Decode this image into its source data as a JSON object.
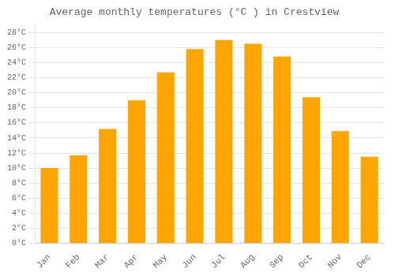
{
  "chart_data": {
    "type": "bar",
    "title": "Average monthly temperatures (°C ) in Crestview",
    "categories": [
      "Jan",
      "Feb",
      "Mar",
      "Apr",
      "May",
      "Jun",
      "Jul",
      "Aug",
      "Sep",
      "Oct",
      "Nov",
      "Dec"
    ],
    "values": [
      10.0,
      11.7,
      15.2,
      19.0,
      22.7,
      25.8,
      27.0,
      26.5,
      24.8,
      19.4,
      14.9,
      11.5
    ],
    "color": "#FFA500",
    "ylim": [
      0,
      29
    ],
    "yticks": [
      {
        "value": 0,
        "label": "0°C"
      },
      {
        "value": 2,
        "label": "2°C"
      },
      {
        "value": 4,
        "label": "4°C"
      },
      {
        "value": 6,
        "label": "6°C"
      },
      {
        "value": 8,
        "label": "8°C"
      },
      {
        "value": 10,
        "label": "10°C"
      },
      {
        "value": 12,
        "label": "12°C"
      },
      {
        "value": 14,
        "label": "14°C"
      },
      {
        "value": 16,
        "label": "16°C"
      },
      {
        "value": 18,
        "label": "18°C"
      },
      {
        "value": 20,
        "label": "20°C"
      },
      {
        "value": 22,
        "label": "22°C"
      },
      {
        "value": 24,
        "label": "24°C"
      },
      {
        "value": 26,
        "label": "26°C"
      },
      {
        "value": 28,
        "label": "28°C"
      }
    ],
    "grid": true
  }
}
